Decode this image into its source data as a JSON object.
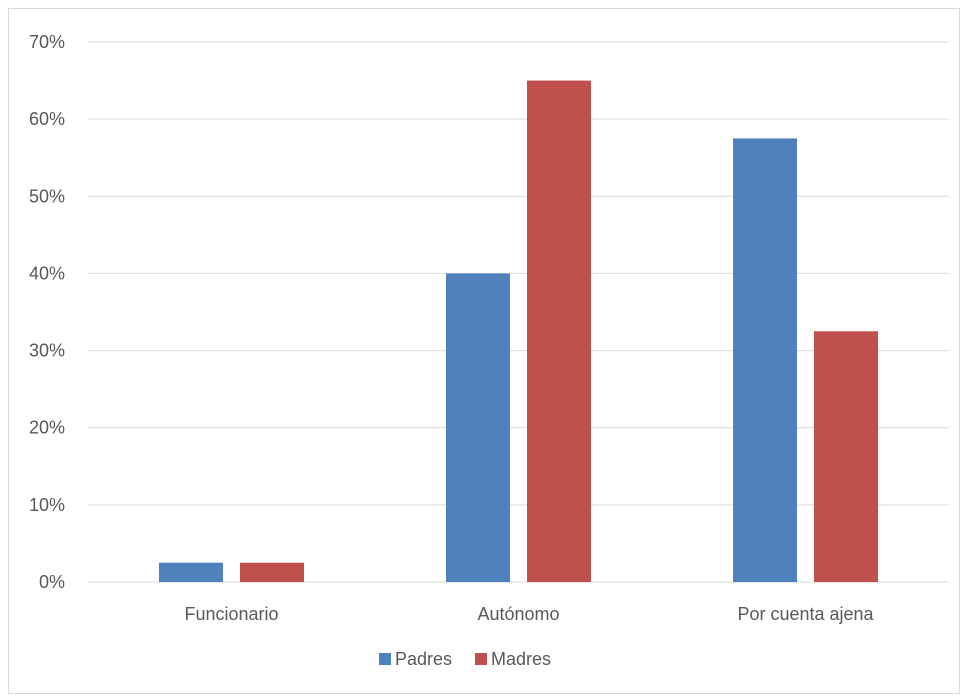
{
  "colors": {
    "Padres": "#4f81bd",
    "Madres": "#c0504d",
    "grid": "#d9d9d9",
    "text": "#595959"
  },
  "chart_data": {
    "type": "bar",
    "categories": [
      "Funcionario",
      "Autónomo",
      "Por cuenta ajena"
    ],
    "series": [
      {
        "name": "Padres",
        "values": [
          2.5,
          40,
          57.5
        ]
      },
      {
        "name": "Madres",
        "values": [
          2.5,
          65,
          32.5
        ]
      }
    ],
    "yticks": [
      "0%",
      "10%",
      "20%",
      "30%",
      "40%",
      "50%",
      "60%",
      "70%"
    ],
    "ylim": [
      0,
      70
    ],
    "grid": true,
    "legend": "bottom"
  }
}
